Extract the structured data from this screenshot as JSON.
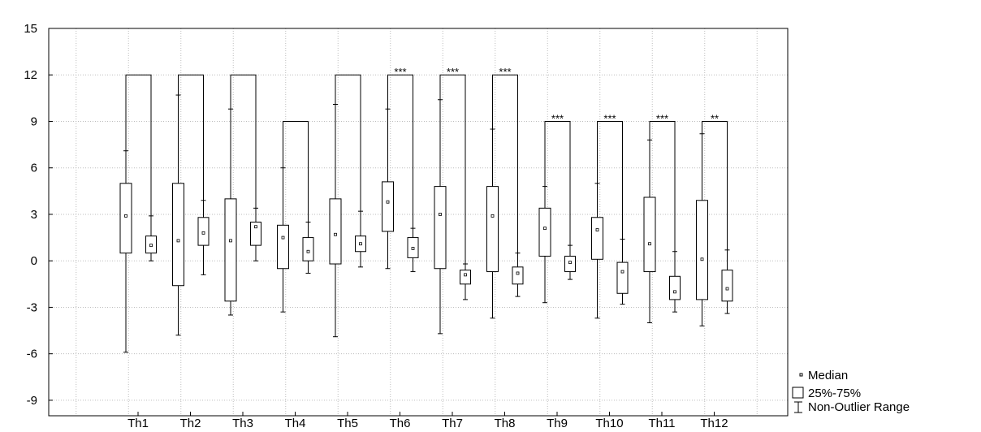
{
  "chart_data": {
    "type": "boxplot",
    "title": "",
    "xlabel": "",
    "ylabel": "",
    "ylim": [
      -10,
      15
    ],
    "yticks": [
      15,
      12,
      9,
      6,
      3,
      0,
      -3,
      -6,
      -9
    ],
    "grid": true,
    "legend_position": "bottom-right",
    "legend": {
      "median_label": "Median",
      "box_label": "25%-75%",
      "range_label": "Non-Outlier Range"
    },
    "categories": [
      "Th1",
      "Th2",
      "Th3",
      "Th4",
      "Th5",
      "Th6",
      "Th7",
      "Th8",
      "Th9",
      "Th10",
      "Th11",
      "Th12"
    ],
    "boxes": [
      {
        "group": "Th1",
        "whisker_low": -5.9,
        "q1": 0.5,
        "median": 2.9,
        "q3": 5.0,
        "whisker_high": 7.1
      },
      {
        "group": "Th1",
        "whisker_low": 0.0,
        "q1": 0.5,
        "median": 1.0,
        "q3": 1.6,
        "whisker_high": 2.9
      },
      {
        "group": "Th2",
        "whisker_low": -4.8,
        "q1": -1.6,
        "median": 1.3,
        "q3": 5.0,
        "whisker_high": 10.7
      },
      {
        "group": "Th2",
        "whisker_low": -0.9,
        "q1": 1.0,
        "median": 1.8,
        "q3": 2.8,
        "whisker_high": 3.9
      },
      {
        "group": "Th3",
        "whisker_low": -3.5,
        "q1": -2.6,
        "median": 1.3,
        "q3": 4.0,
        "whisker_high": 9.8
      },
      {
        "group": "Th3",
        "whisker_low": 0.0,
        "q1": 1.0,
        "median": 2.2,
        "q3": 2.5,
        "whisker_high": 3.4
      },
      {
        "group": "Th4",
        "whisker_low": -3.3,
        "q1": -0.5,
        "median": 1.5,
        "q3": 2.3,
        "whisker_high": 6.0
      },
      {
        "group": "Th4",
        "whisker_low": -0.8,
        "q1": 0.0,
        "median": 0.6,
        "q3": 1.5,
        "whisker_high": 2.5
      },
      {
        "group": "Th5",
        "whisker_low": -4.9,
        "q1": -0.2,
        "median": 1.7,
        "q3": 4.0,
        "whisker_high": 10.1
      },
      {
        "group": "Th5",
        "whisker_low": -0.4,
        "q1": 0.6,
        "median": 1.1,
        "q3": 1.6,
        "whisker_high": 3.2
      },
      {
        "group": "Th6",
        "whisker_low": -0.5,
        "q1": 1.9,
        "median": 3.8,
        "q3": 5.1,
        "whisker_high": 9.8
      },
      {
        "group": "Th6",
        "whisker_low": -0.7,
        "q1": 0.2,
        "median": 0.8,
        "q3": 1.5,
        "whisker_high": 2.1
      },
      {
        "group": "Th7",
        "whisker_low": -4.7,
        "q1": -0.5,
        "median": 3.0,
        "q3": 4.8,
        "whisker_high": 10.4
      },
      {
        "group": "Th7",
        "whisker_low": -2.5,
        "q1": -1.5,
        "median": -0.9,
        "q3": -0.6,
        "whisker_high": -0.2
      },
      {
        "group": "Th8",
        "whisker_low": -3.7,
        "q1": -0.7,
        "median": 2.9,
        "q3": 4.8,
        "whisker_high": 8.5
      },
      {
        "group": "Th8",
        "whisker_low": -2.3,
        "q1": -1.5,
        "median": -0.8,
        "q3": -0.4,
        "whisker_high": 0.5
      },
      {
        "group": "Th9",
        "whisker_low": -2.7,
        "q1": 0.3,
        "median": 2.1,
        "q3": 3.4,
        "whisker_high": 4.8
      },
      {
        "group": "Th9",
        "whisker_low": -1.2,
        "q1": -0.7,
        "median": -0.1,
        "q3": 0.3,
        "whisker_high": 1.0
      },
      {
        "group": "Th10",
        "whisker_low": -3.7,
        "q1": 0.1,
        "median": 2.0,
        "q3": 2.8,
        "whisker_high": 5.0
      },
      {
        "group": "Th10",
        "whisker_low": -2.8,
        "q1": -2.1,
        "median": -0.7,
        "q3": -0.1,
        "whisker_high": 1.4
      },
      {
        "group": "Th11",
        "whisker_low": -4.0,
        "q1": -0.7,
        "median": 1.1,
        "q3": 4.1,
        "whisker_high": 7.8
      },
      {
        "group": "Th11",
        "whisker_low": -3.3,
        "q1": -2.5,
        "median": -2.0,
        "q3": -1.0,
        "whisker_high": 0.6
      },
      {
        "group": "Th12",
        "whisker_low": -4.2,
        "q1": -2.5,
        "median": 0.1,
        "q3": 3.9,
        "whisker_high": 8.2
      },
      {
        "group": "Th12",
        "whisker_low": -3.4,
        "q1": -2.6,
        "median": -1.8,
        "q3": -0.6,
        "whisker_high": 0.7
      }
    ],
    "brackets": [
      {
        "group": "Th1",
        "y": 12,
        "label": ""
      },
      {
        "group": "Th2",
        "y": 12,
        "label": ""
      },
      {
        "group": "Th3",
        "y": 12,
        "label": ""
      },
      {
        "group": "Th4",
        "y": 9,
        "label": ""
      },
      {
        "group": "Th5",
        "y": 12,
        "label": ""
      },
      {
        "group": "Th6",
        "y": 12,
        "label": "***"
      },
      {
        "group": "Th7",
        "y": 12,
        "label": "***"
      },
      {
        "group": "Th8",
        "y": 12,
        "label": "***"
      },
      {
        "group": "Th9",
        "y": 9,
        "label": "***"
      },
      {
        "group": "Th10",
        "y": 9,
        "label": "***"
      },
      {
        "group": "Th11",
        "y": 9,
        "label": "***"
      },
      {
        "group": "Th12",
        "y": 9,
        "label": "**"
      }
    ]
  }
}
